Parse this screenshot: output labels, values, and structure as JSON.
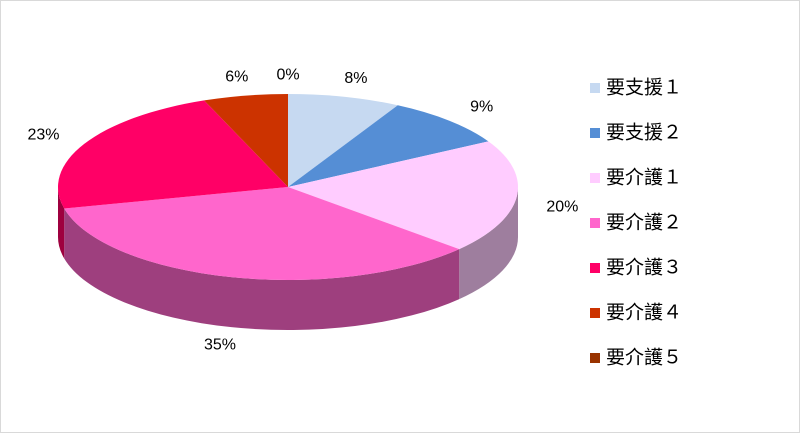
{
  "chart_data": {
    "type": "pie",
    "categories": [
      "要支援１",
      "要支援２",
      "要介護１",
      "要介護２",
      "要介護３",
      "要介護４",
      "要介護５"
    ],
    "values": [
      8,
      9,
      20,
      35,
      23,
      6,
      0
    ],
    "value_labels": [
      "8%",
      "9%",
      "20%",
      "35%",
      "23%",
      "6%",
      "0%"
    ],
    "colors": [
      "#c6d9f1",
      "#558ed5",
      "#ffccff",
      "#ff66cc",
      "#ff0066",
      "#cc3300",
      "#993300"
    ],
    "legend": "right"
  }
}
